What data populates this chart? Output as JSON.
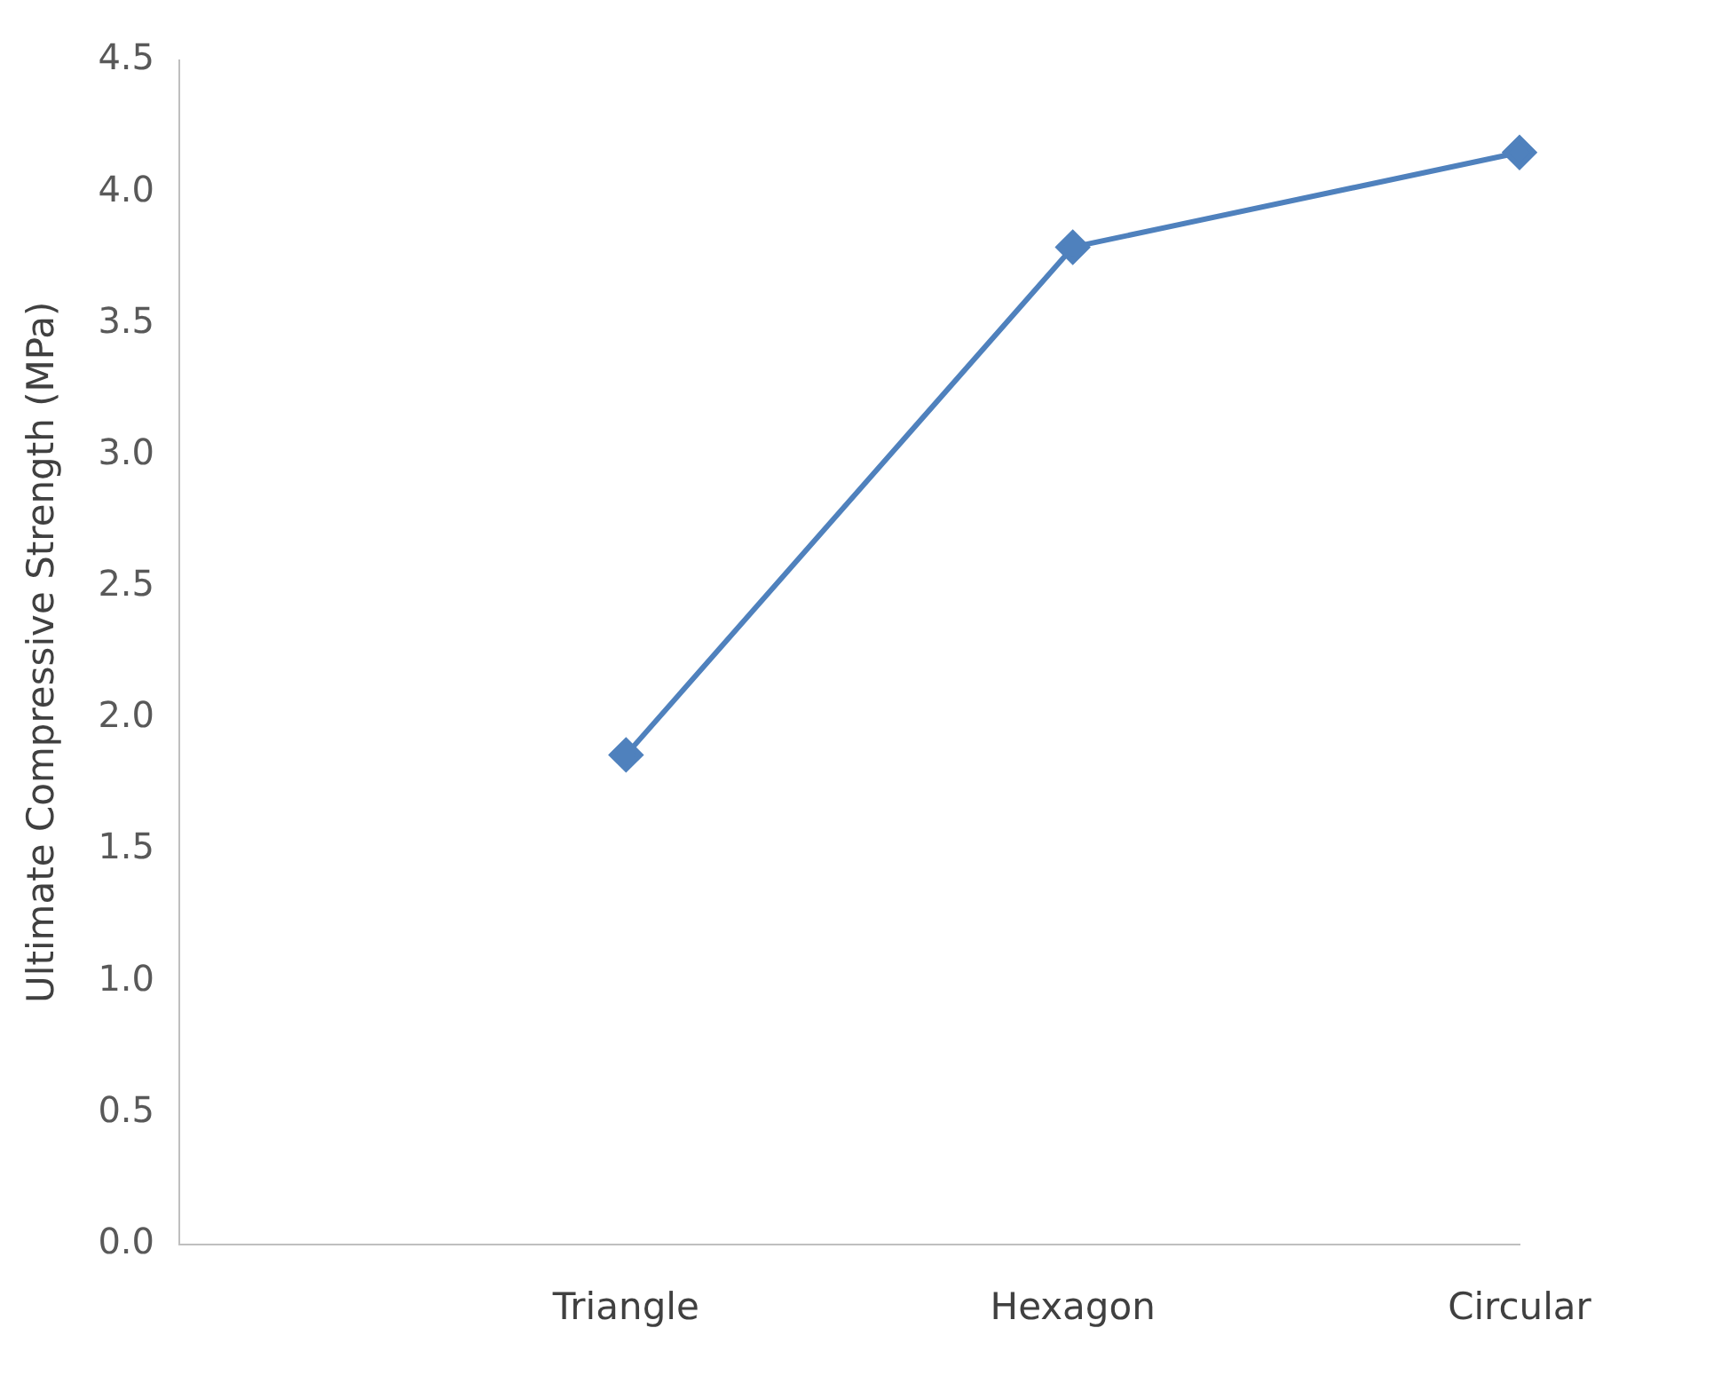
{
  "chart_data": {
    "type": "line",
    "ylabel": "Ultimate Compressive Strength (MPa)",
    "categories": [
      null,
      "Triangle",
      "Hexagon",
      "Circular"
    ],
    "series": [
      {
        "color": "#4f81bd",
        "values": [
          null,
          1.86,
          3.79,
          4.15
        ]
      }
    ],
    "ylim": [
      0,
      4.5
    ],
    "yticks": [
      {
        "value": 0,
        "label": "0.0"
      },
      {
        "value": 0.5,
        "label": "0.5"
      },
      {
        "value": 1,
        "label": "1.0"
      },
      {
        "value": 1.5,
        "label": "1.5"
      },
      {
        "value": 2,
        "label": "2.0"
      },
      {
        "value": 2.5,
        "label": "2.5"
      },
      {
        "value": 3,
        "label": "3.0"
      },
      {
        "value": 3.5,
        "label": "3.5"
      },
      {
        "value": 4,
        "label": "4.0"
      },
      {
        "value": 4.5,
        "label": "4.5"
      }
    ],
    "grid": false,
    "legend": false,
    "marker": "diamond",
    "line_style": "solid"
  }
}
